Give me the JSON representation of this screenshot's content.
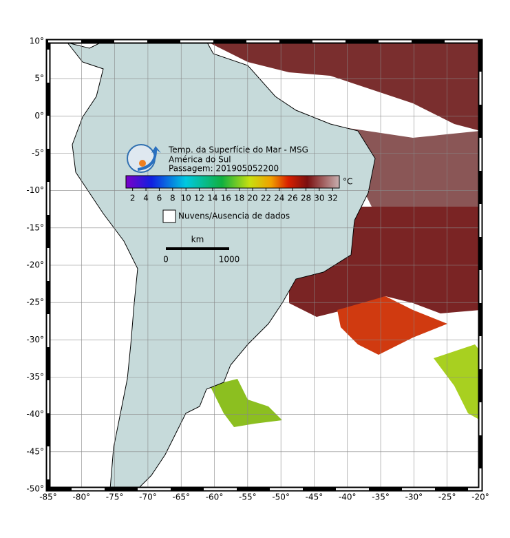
{
  "map": {
    "title_lines": [
      "Temp. da Superfície do Mar - MSG",
      "América do Sul",
      "Passagem: 201905052200"
    ],
    "colorbar": {
      "unit": "°C",
      "clim": [
        1,
        33
      ],
      "ticks": [
        2,
        4,
        6,
        8,
        10,
        12,
        14,
        16,
        18,
        20,
        22,
        24,
        26,
        28,
        30,
        32
      ]
    },
    "legend": "Nuvens/Ausencia de dados",
    "scalebar": {
      "unit": "km",
      "labels": [
        "0",
        "1000"
      ]
    },
    "xlim": [
      -85,
      -20
    ],
    "ylim": [
      -50,
      10
    ],
    "grid": true,
    "xticks": [
      {
        "value": -85,
        "label": "-85°"
      },
      {
        "value": -80,
        "label": "-80°"
      },
      {
        "value": -75,
        "label": "-75°"
      },
      {
        "value": -70,
        "label": "-70°"
      },
      {
        "value": -65,
        "label": "-65°"
      },
      {
        "value": -60,
        "label": "-60°"
      },
      {
        "value": -55,
        "label": "-55°"
      },
      {
        "value": -50,
        "label": "-50°"
      },
      {
        "value": -45,
        "label": "-45°"
      },
      {
        "value": -40,
        "label": "-40°"
      },
      {
        "value": -35,
        "label": "-35°"
      },
      {
        "value": -30,
        "label": "-30°"
      },
      {
        "value": -25,
        "label": "-25°"
      },
      {
        "value": -20,
        "label": "-20°"
      }
    ],
    "yticks": [
      {
        "value": 10,
        "label": "10°"
      },
      {
        "value": 5,
        "label": "5°"
      },
      {
        "value": 0,
        "label": "0°"
      },
      {
        "value": -5,
        "label": "-5°"
      },
      {
        "value": -10,
        "label": "-10°"
      },
      {
        "value": -15,
        "label": "-15°"
      },
      {
        "value": -20,
        "label": "-20°"
      },
      {
        "value": -25,
        "label": "-25°"
      },
      {
        "value": -30,
        "label": "-30°"
      },
      {
        "value": -35,
        "label": "-35°"
      },
      {
        "value": -40,
        "label": "-40°"
      },
      {
        "value": -45,
        "label": "-45°"
      },
      {
        "value": -50,
        "label": "-50°"
      }
    ]
  }
}
